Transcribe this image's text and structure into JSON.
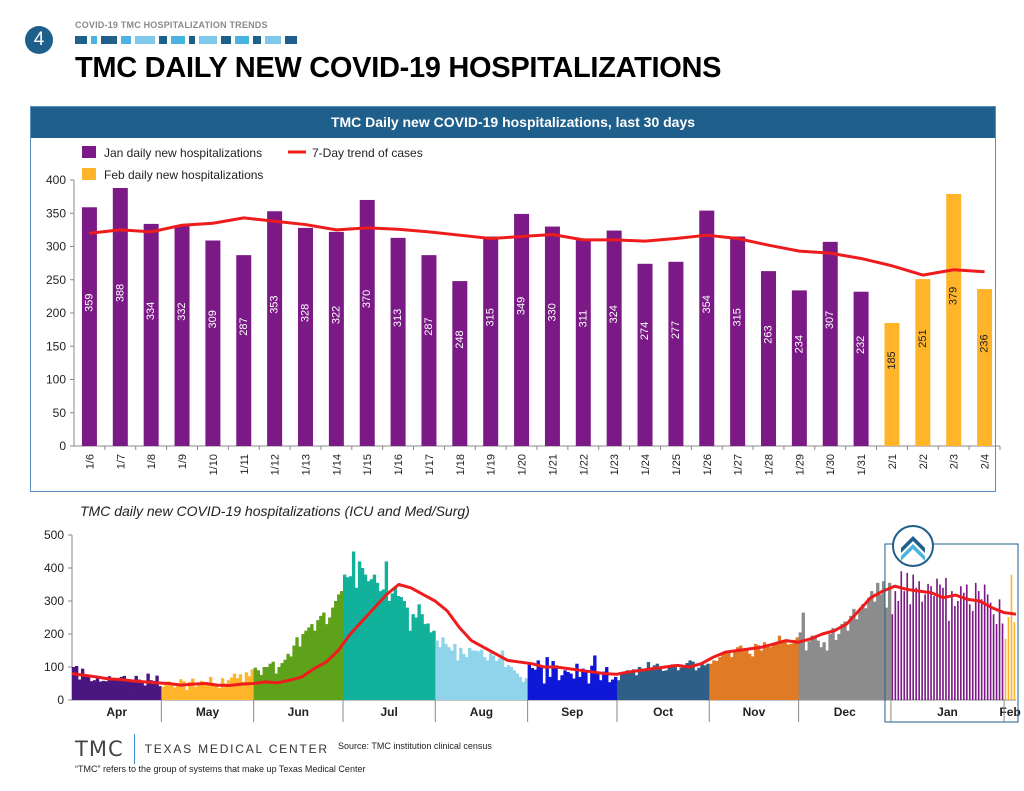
{
  "header": {
    "page_number": "4",
    "section_label": "COVID-19 TMC HOSPITALIZATION TRENDS",
    "title": "TMC DAILY NEW COVID-19 HOSPITALIZATIONS"
  },
  "colors": {
    "jan": "#7b1a86",
    "feb": "#ffb42a",
    "trend": "#ee1c1c",
    "header_blue": "#1f5f8b"
  },
  "footer": {
    "logo_abbr": "TMC",
    "logo_name": "TEXAS MEDICAL CENTER",
    "source": "Source: TMC institution clinical census",
    "footnote": "“TMC” refers to the group of systems that make up Texas Medical Center"
  },
  "chart_data": [
    {
      "type": "bar",
      "title": "TMC Daily new COVID-19 hospitalizations, last 30 days",
      "categories": [
        "1/6",
        "1/7",
        "1/8",
        "1/9",
        "1/10",
        "1/11",
        "1/12",
        "1/13",
        "1/14",
        "1/15",
        "1/16",
        "1/17",
        "1/18",
        "1/19",
        "1/20",
        "1/21",
        "1/22",
        "1/23",
        "1/24",
        "1/25",
        "1/26",
        "1/27",
        "1/28",
        "1/29",
        "1/30",
        "1/31",
        "2/1",
        "2/2",
        "2/3",
        "2/4"
      ],
      "series": [
        {
          "name": "Jan daily new hospitalizations",
          "color": "#7b1a86",
          "values": [
            359,
            388,
            334,
            332,
            309,
            287,
            353,
            328,
            322,
            370,
            313,
            287,
            248,
            315,
            349,
            330,
            311,
            324,
            274,
            277,
            354,
            315,
            263,
            234,
            307,
            232,
            null,
            null,
            null,
            null
          ]
        },
        {
          "name": "Feb daily new hospitalizations",
          "color": "#ffb42a",
          "values": [
            null,
            null,
            null,
            null,
            null,
            null,
            null,
            null,
            null,
            null,
            null,
            null,
            null,
            null,
            null,
            null,
            null,
            null,
            null,
            null,
            null,
            null,
            null,
            null,
            null,
            null,
            185,
            251,
            379,
            236
          ]
        },
        {
          "name": "7-Day trend of cases",
          "type": "line",
          "color": "#ee1c1c",
          "values": [
            320,
            325,
            322,
            332,
            335,
            343,
            338,
            333,
            325,
            328,
            326,
            322,
            317,
            312,
            315,
            318,
            310,
            310,
            308,
            312,
            317,
            312,
            302,
            293,
            290,
            282,
            271,
            257,
            265,
            262
          ]
        }
      ],
      "ylim": [
        0,
        400
      ],
      "yticks": [
        0,
        50,
        100,
        150,
        200,
        250,
        300,
        350,
        400
      ],
      "legend": "top-left",
      "grid": false
    },
    {
      "type": "bar",
      "title": "TMC daily new COVID-19 hospitalizations (ICU and Med/Surg)",
      "ylim": [
        0,
        500
      ],
      "yticks": [
        0,
        100,
        200,
        300,
        400,
        500
      ],
      "grid": false,
      "months": [
        {
          "name": "Apr",
          "color": "#4a1780",
          "values": [
            100,
            103,
            62,
            95,
            72,
            73,
            57,
            60,
            68,
            56,
            58,
            57,
            72,
            60,
            62,
            64,
            70,
            73,
            62,
            58,
            54,
            73,
            62,
            57,
            44,
            80,
            60,
            58,
            74,
            42
          ]
        },
        {
          "name": "May",
          "color": "#ffb42a",
          "values": [
            40,
            46,
            56,
            50,
            38,
            45,
            63,
            57,
            30,
            55,
            65,
            40,
            50,
            58,
            45,
            54,
            70,
            48,
            42,
            36,
            66,
            50,
            60,
            68,
            80,
            66,
            78,
            55,
            84,
            72,
            93
          ]
        },
        {
          "name": "Jun",
          "color": "#5ea21a",
          "values": [
            98,
            90,
            76,
            100,
            100,
            110,
            116,
            80,
            100,
            112,
            122,
            140,
            132,
            165,
            190,
            162,
            200,
            210,
            220,
            230,
            210,
            242,
            255,
            265,
            230,
            250,
            280,
            300,
            320,
            330
          ]
        },
        {
          "name": "Jul",
          "color": "#12b19c",
          "values": [
            380,
            372,
            375,
            450,
            340,
            420,
            400,
            380,
            360,
            366,
            380,
            355,
            330,
            335,
            420,
            300,
            323,
            340,
            315,
            312,
            300,
            280,
            210,
            260,
            250,
            290,
            260,
            230,
            232,
            205,
            210
          ]
        },
        {
          "name": "Aug",
          "color": "#8fd4ea",
          "values": [
            180,
            160,
            190,
            170,
            160,
            150,
            170,
            120,
            158,
            140,
            130,
            158,
            150,
            150,
            148,
            153,
            130,
            120,
            143,
            135,
            118,
            126,
            150,
            100,
            106,
            100,
            90,
            80,
            70,
            55,
            66
          ]
        },
        {
          "name": "Sep",
          "color": "#0e18d6",
          "values": [
            112,
            97,
            92,
            120,
            100,
            50,
            130,
            70,
            118,
            105,
            60,
            75,
            90,
            85,
            80,
            65,
            110,
            70,
            95,
            90,
            50,
            104,
            135,
            80,
            60,
            86,
            100,
            54,
            62,
            70
          ]
        },
        {
          "name": "Oct",
          "color": "#2e5f88",
          "values": [
            60,
            84,
            80,
            90,
            88,
            93,
            75,
            100,
            95,
            90,
            115,
            98,
            105,
            110,
            98,
            88,
            90,
            103,
            108,
            105,
            90,
            98,
            105,
            112,
            120,
            116,
            90,
            98,
            110,
            105,
            110
          ]
        },
        {
          "name": "Nov",
          "color": "#e07a24",
          "values": [
            110,
            120,
            118,
            130,
            140,
            145,
            150,
            130,
            150,
            160,
            165,
            148,
            152,
            140,
            132,
            170,
            166,
            150,
            175,
            168,
            160,
            170,
            175,
            195,
            180,
            178,
            168,
            170,
            182,
            190
          ]
        },
        {
          "name": "Dec",
          "color": "#8c8c8c",
          "values": [
            205,
            265,
            150,
            178,
            195,
            190,
            180,
            160,
            175,
            150,
            200,
            218,
            182,
            200,
            230,
            238,
            210,
            255,
            276,
            245,
            270,
            290,
            278,
            310,
            330,
            298,
            355,
            320,
            360,
            280,
            355
          ]
        },
        {
          "name": "Jan",
          "color": "#7b1a86",
          "values": [
            260,
            330,
            300,
            390,
            330,
            385,
            290,
            380,
            340,
            360,
            298,
            320,
            352,
            345,
            315,
            368,
            350,
            340,
            370,
            240,
            330,
            285,
            300,
            345,
            325,
            350,
            290,
            270,
            355,
            330,
            305,
            350,
            320,
            295,
            260,
            230,
            305,
            232
          ]
        },
        {
          "name": "Feb",
          "color": "#ffb42a",
          "values": [
            185,
            251,
            379,
            236
          ]
        }
      ],
      "trend": {
        "name": "7-Day trend of cases",
        "color": "#ee1c1c",
        "values": [
          80,
          75,
          70,
          64,
          62,
          58,
          55,
          52,
          50,
          45,
          48,
          50,
          45,
          44,
          48,
          50,
          55,
          52,
          60,
          70,
          95,
          115,
          150,
          200,
          240,
          280,
          320,
          350,
          340,
          320,
          300,
          270,
          220,
          180,
          160,
          140,
          120,
          115,
          110,
          100,
          100,
          95,
          90,
          85,
          80,
          78,
          85,
          90,
          95,
          100,
          105,
          100,
          110,
          130,
          145,
          150,
          155,
          160,
          170,
          180,
          175,
          185,
          200,
          210,
          230,
          270,
          310,
          330,
          345,
          335,
          330,
          325,
          310,
          318,
          305,
          300,
          280,
          265,
          260
        ]
      }
    }
  ]
}
